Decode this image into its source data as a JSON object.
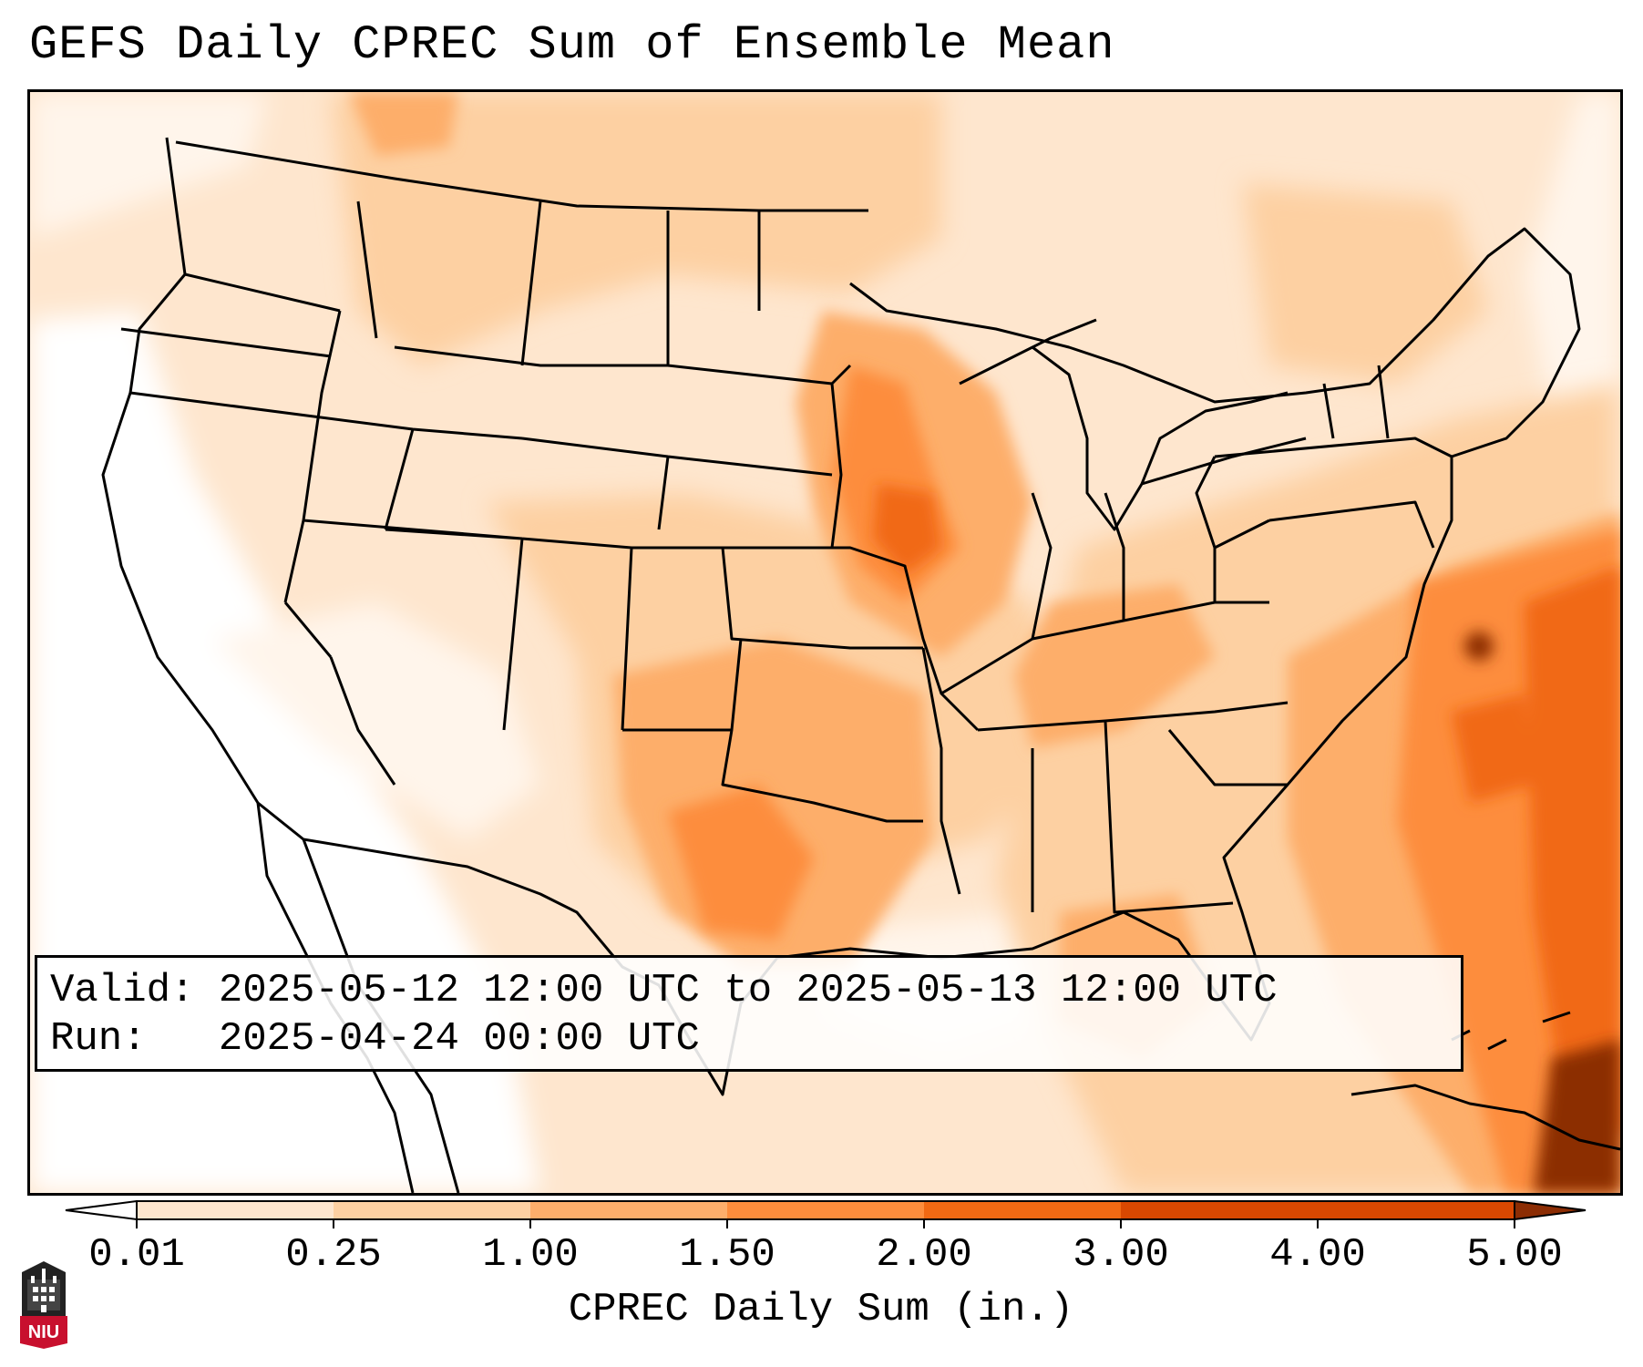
{
  "title": "GEFS Daily CPREC Sum of Ensemble Mean",
  "info": {
    "valid": "Valid: 2025-05-12 12:00 UTC to 2025-05-13 12:00 UTC",
    "run": "Run:   2025-04-24 00:00 UTC"
  },
  "colorbar": {
    "label": "CPREC Daily Sum (in.)",
    "ticks": [
      "0.01",
      "0.25",
      "1.00",
      "1.50",
      "2.00",
      "3.00",
      "4.00",
      "5.00"
    ],
    "colors": [
      "#ffffff",
      "#fee6ce",
      "#fdd0a2",
      "#fdae6b",
      "#fd8d3c",
      "#f16913",
      "#d94801",
      "#8c2d04"
    ],
    "extend": "both"
  },
  "logo": {
    "text": "NIU",
    "color": "#c8102e"
  },
  "map": {
    "region": "Continental United States",
    "colors": {
      "background": "#fff5eb",
      "light": "#fee6ce",
      "mid": "#fdd0a2",
      "orange": "#fdae6b",
      "deep": "#fd8d3c",
      "deeper": "#f16913",
      "darkest": "#8c2d04"
    }
  }
}
